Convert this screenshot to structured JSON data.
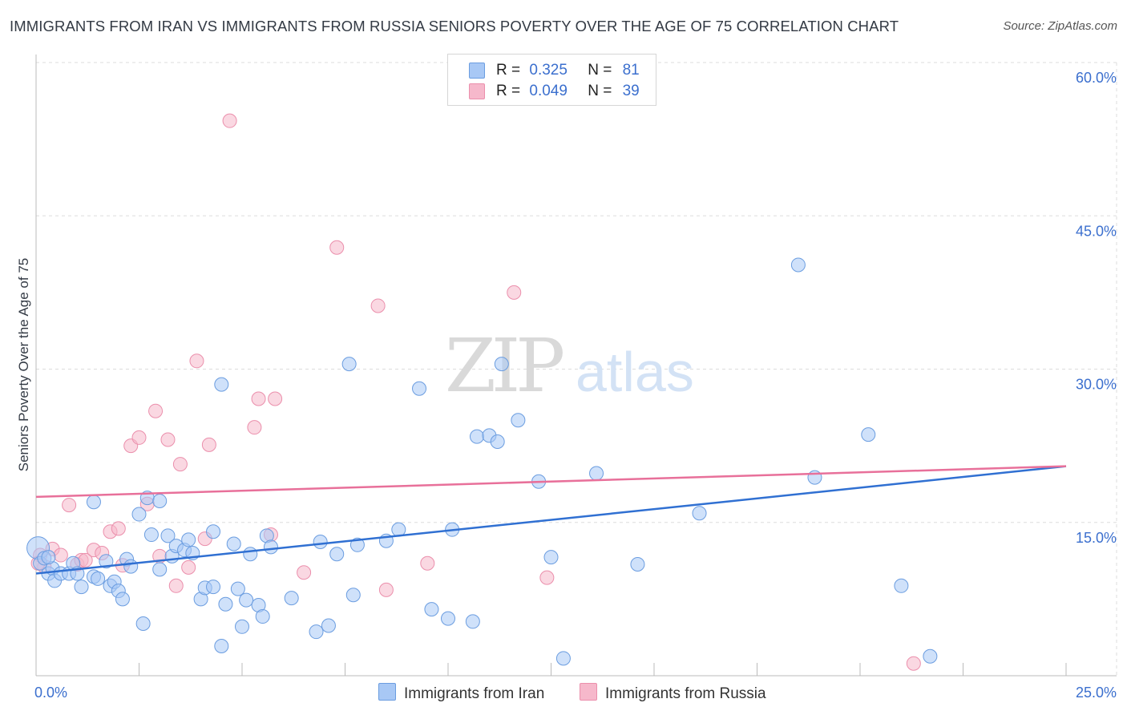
{
  "title": "IMMIGRANTS FROM IRAN VS IMMIGRANTS FROM RUSSIA SENIORS POVERTY OVER THE AGE OF 75 CORRELATION CHART",
  "source": "Source: ZipAtlas.com",
  "watermark": {
    "zip": "ZIP",
    "atlas": "atlas"
  },
  "legend": {
    "rows": [
      {
        "r_label": "R =",
        "r_value": "0.325",
        "n_label": "N =",
        "n_value": "81",
        "color": "#a8c8f5"
      },
      {
        "r_label": "R =",
        "r_value": "0.049",
        "n_label": "N =",
        "n_value": "39",
        "color": "#f6b8cb"
      }
    ]
  },
  "bottom_legend": {
    "iran": "Immigrants from Iran",
    "russia": "Immigrants from Russia"
  },
  "colors": {
    "iran_fill": "#a8c8f5",
    "iran_stroke": "#6b9de0",
    "iran_line": "#3070d2",
    "russia_fill": "#f6b8cb",
    "russia_stroke": "#eb8fac",
    "russia_line": "#e8709a",
    "tick_label": "#3b6fce",
    "grid": "#dddddd"
  },
  "chart_data": {
    "type": "scatter",
    "title": "IMMIGRANTS FROM IRAN VS IMMIGRANTS FROM RUSSIA SENIORS POVERTY OVER THE AGE OF 75 CORRELATION CHART",
    "xlabel": "",
    "ylabel": "Seniors Poverty Over the Age of 75",
    "xlim": [
      0,
      25
    ],
    "ylim": [
      0,
      60
    ],
    "x_tick_labels": [
      "0.0%",
      "25.0%"
    ],
    "y_ticks": [
      15,
      30,
      45,
      60
    ],
    "y_tick_labels": [
      "15.0%",
      "30.0%",
      "45.0%",
      "60.0%"
    ],
    "grid": true,
    "legend_position": "top-center",
    "series": [
      {
        "name": "Immigrants from Iran",
        "R": 0.325,
        "N": 81,
        "trend": [
          [
            0,
            10.0
          ],
          [
            25,
            20.5
          ]
        ],
        "points": [
          [
            0.05,
            12.5
          ],
          [
            0.1,
            11.0
          ],
          [
            0.2,
            11.5
          ],
          [
            0.3,
            10.0
          ],
          [
            0.4,
            10.5
          ],
          [
            0.45,
            9.3
          ],
          [
            0.6,
            10.0
          ],
          [
            0.8,
            10.0
          ],
          [
            0.9,
            11.0
          ],
          [
            1.0,
            10.0
          ],
          [
            1.1,
            8.7
          ],
          [
            1.4,
            17.0
          ],
          [
            1.4,
            9.7
          ],
          [
            1.5,
            9.5
          ],
          [
            1.7,
            11.2
          ],
          [
            1.8,
            8.8
          ],
          [
            1.9,
            9.2
          ],
          [
            2.0,
            8.3
          ],
          [
            2.1,
            7.5
          ],
          [
            2.2,
            11.4
          ],
          [
            2.3,
            10.7
          ],
          [
            2.5,
            15.8
          ],
          [
            2.6,
            5.1
          ],
          [
            2.7,
            17.4
          ],
          [
            2.8,
            13.8
          ],
          [
            3.0,
            17.1
          ],
          [
            3.0,
            10.4
          ],
          [
            3.2,
            13.7
          ],
          [
            3.3,
            11.7
          ],
          [
            3.4,
            12.7
          ],
          [
            3.6,
            12.3
          ],
          [
            3.7,
            13.3
          ],
          [
            3.8,
            12.0
          ],
          [
            4.0,
            7.5
          ],
          [
            4.1,
            8.6
          ],
          [
            4.3,
            8.7
          ],
          [
            4.3,
            14.1
          ],
          [
            4.5,
            28.5
          ],
          [
            4.5,
            2.9
          ],
          [
            4.6,
            7.0
          ],
          [
            4.8,
            12.9
          ],
          [
            4.9,
            8.5
          ],
          [
            5.0,
            4.8
          ],
          [
            5.1,
            7.4
          ],
          [
            5.2,
            11.9
          ],
          [
            5.4,
            6.9
          ],
          [
            5.5,
            5.8
          ],
          [
            5.6,
            13.7
          ],
          [
            5.7,
            12.6
          ],
          [
            6.2,
            7.6
          ],
          [
            6.8,
            4.3
          ],
          [
            6.9,
            13.1
          ],
          [
            7.1,
            4.9
          ],
          [
            7.3,
            11.9
          ],
          [
            7.6,
            30.5
          ],
          [
            7.7,
            7.9
          ],
          [
            7.8,
            12.8
          ],
          [
            8.5,
            13.2
          ],
          [
            8.8,
            14.3
          ],
          [
            9.3,
            28.1
          ],
          [
            9.6,
            6.5
          ],
          [
            10.0,
            5.6
          ],
          [
            10.1,
            14.3
          ],
          [
            10.6,
            5.3
          ],
          [
            10.7,
            23.4
          ],
          [
            11.0,
            23.5
          ],
          [
            11.2,
            22.9
          ],
          [
            11.3,
            30.5
          ],
          [
            11.7,
            25.0
          ],
          [
            12.2,
            19.0
          ],
          [
            12.5,
            11.6
          ],
          [
            12.8,
            1.7
          ],
          [
            13.6,
            19.8
          ],
          [
            14.6,
            10.9
          ],
          [
            16.1,
            15.9
          ],
          [
            18.5,
            40.2
          ],
          [
            18.9,
            19.4
          ],
          [
            20.2,
            23.6
          ],
          [
            21.0,
            8.8
          ],
          [
            21.7,
            1.9
          ],
          [
            0.3,
            11.6
          ]
        ]
      },
      {
        "name": "Immigrants from Russia",
        "R": 0.049,
        "N": 39,
        "trend": [
          [
            0,
            17.5
          ],
          [
            25,
            20.5
          ]
        ],
        "points": [
          [
            0.1,
            11.8
          ],
          [
            0.2,
            10.7
          ],
          [
            0.4,
            12.4
          ],
          [
            0.6,
            11.8
          ],
          [
            0.8,
            16.7
          ],
          [
            1.0,
            10.9
          ],
          [
            1.1,
            11.3
          ],
          [
            1.2,
            11.3
          ],
          [
            1.4,
            12.3
          ],
          [
            1.6,
            12.0
          ],
          [
            1.8,
            14.1
          ],
          [
            2.0,
            14.4
          ],
          [
            2.1,
            10.8
          ],
          [
            2.3,
            22.5
          ],
          [
            2.5,
            23.3
          ],
          [
            2.7,
            16.8
          ],
          [
            2.9,
            25.9
          ],
          [
            3.0,
            11.7
          ],
          [
            3.2,
            23.1
          ],
          [
            3.4,
            8.8
          ],
          [
            3.5,
            20.7
          ],
          [
            3.7,
            10.6
          ],
          [
            3.9,
            30.8
          ],
          [
            4.1,
            13.4
          ],
          [
            4.2,
            22.6
          ],
          [
            4.7,
            54.3
          ],
          [
            5.3,
            24.3
          ],
          [
            5.4,
            27.1
          ],
          [
            5.7,
            13.8
          ],
          [
            5.8,
            27.1
          ],
          [
            6.5,
            10.1
          ],
          [
            7.3,
            41.9
          ],
          [
            8.3,
            36.2
          ],
          [
            8.5,
            8.4
          ],
          [
            9.5,
            11.0
          ],
          [
            11.6,
            37.5
          ],
          [
            12.4,
            9.6
          ],
          [
            21.3,
            1.2
          ],
          [
            0.05,
            11.0
          ]
        ]
      }
    ]
  }
}
